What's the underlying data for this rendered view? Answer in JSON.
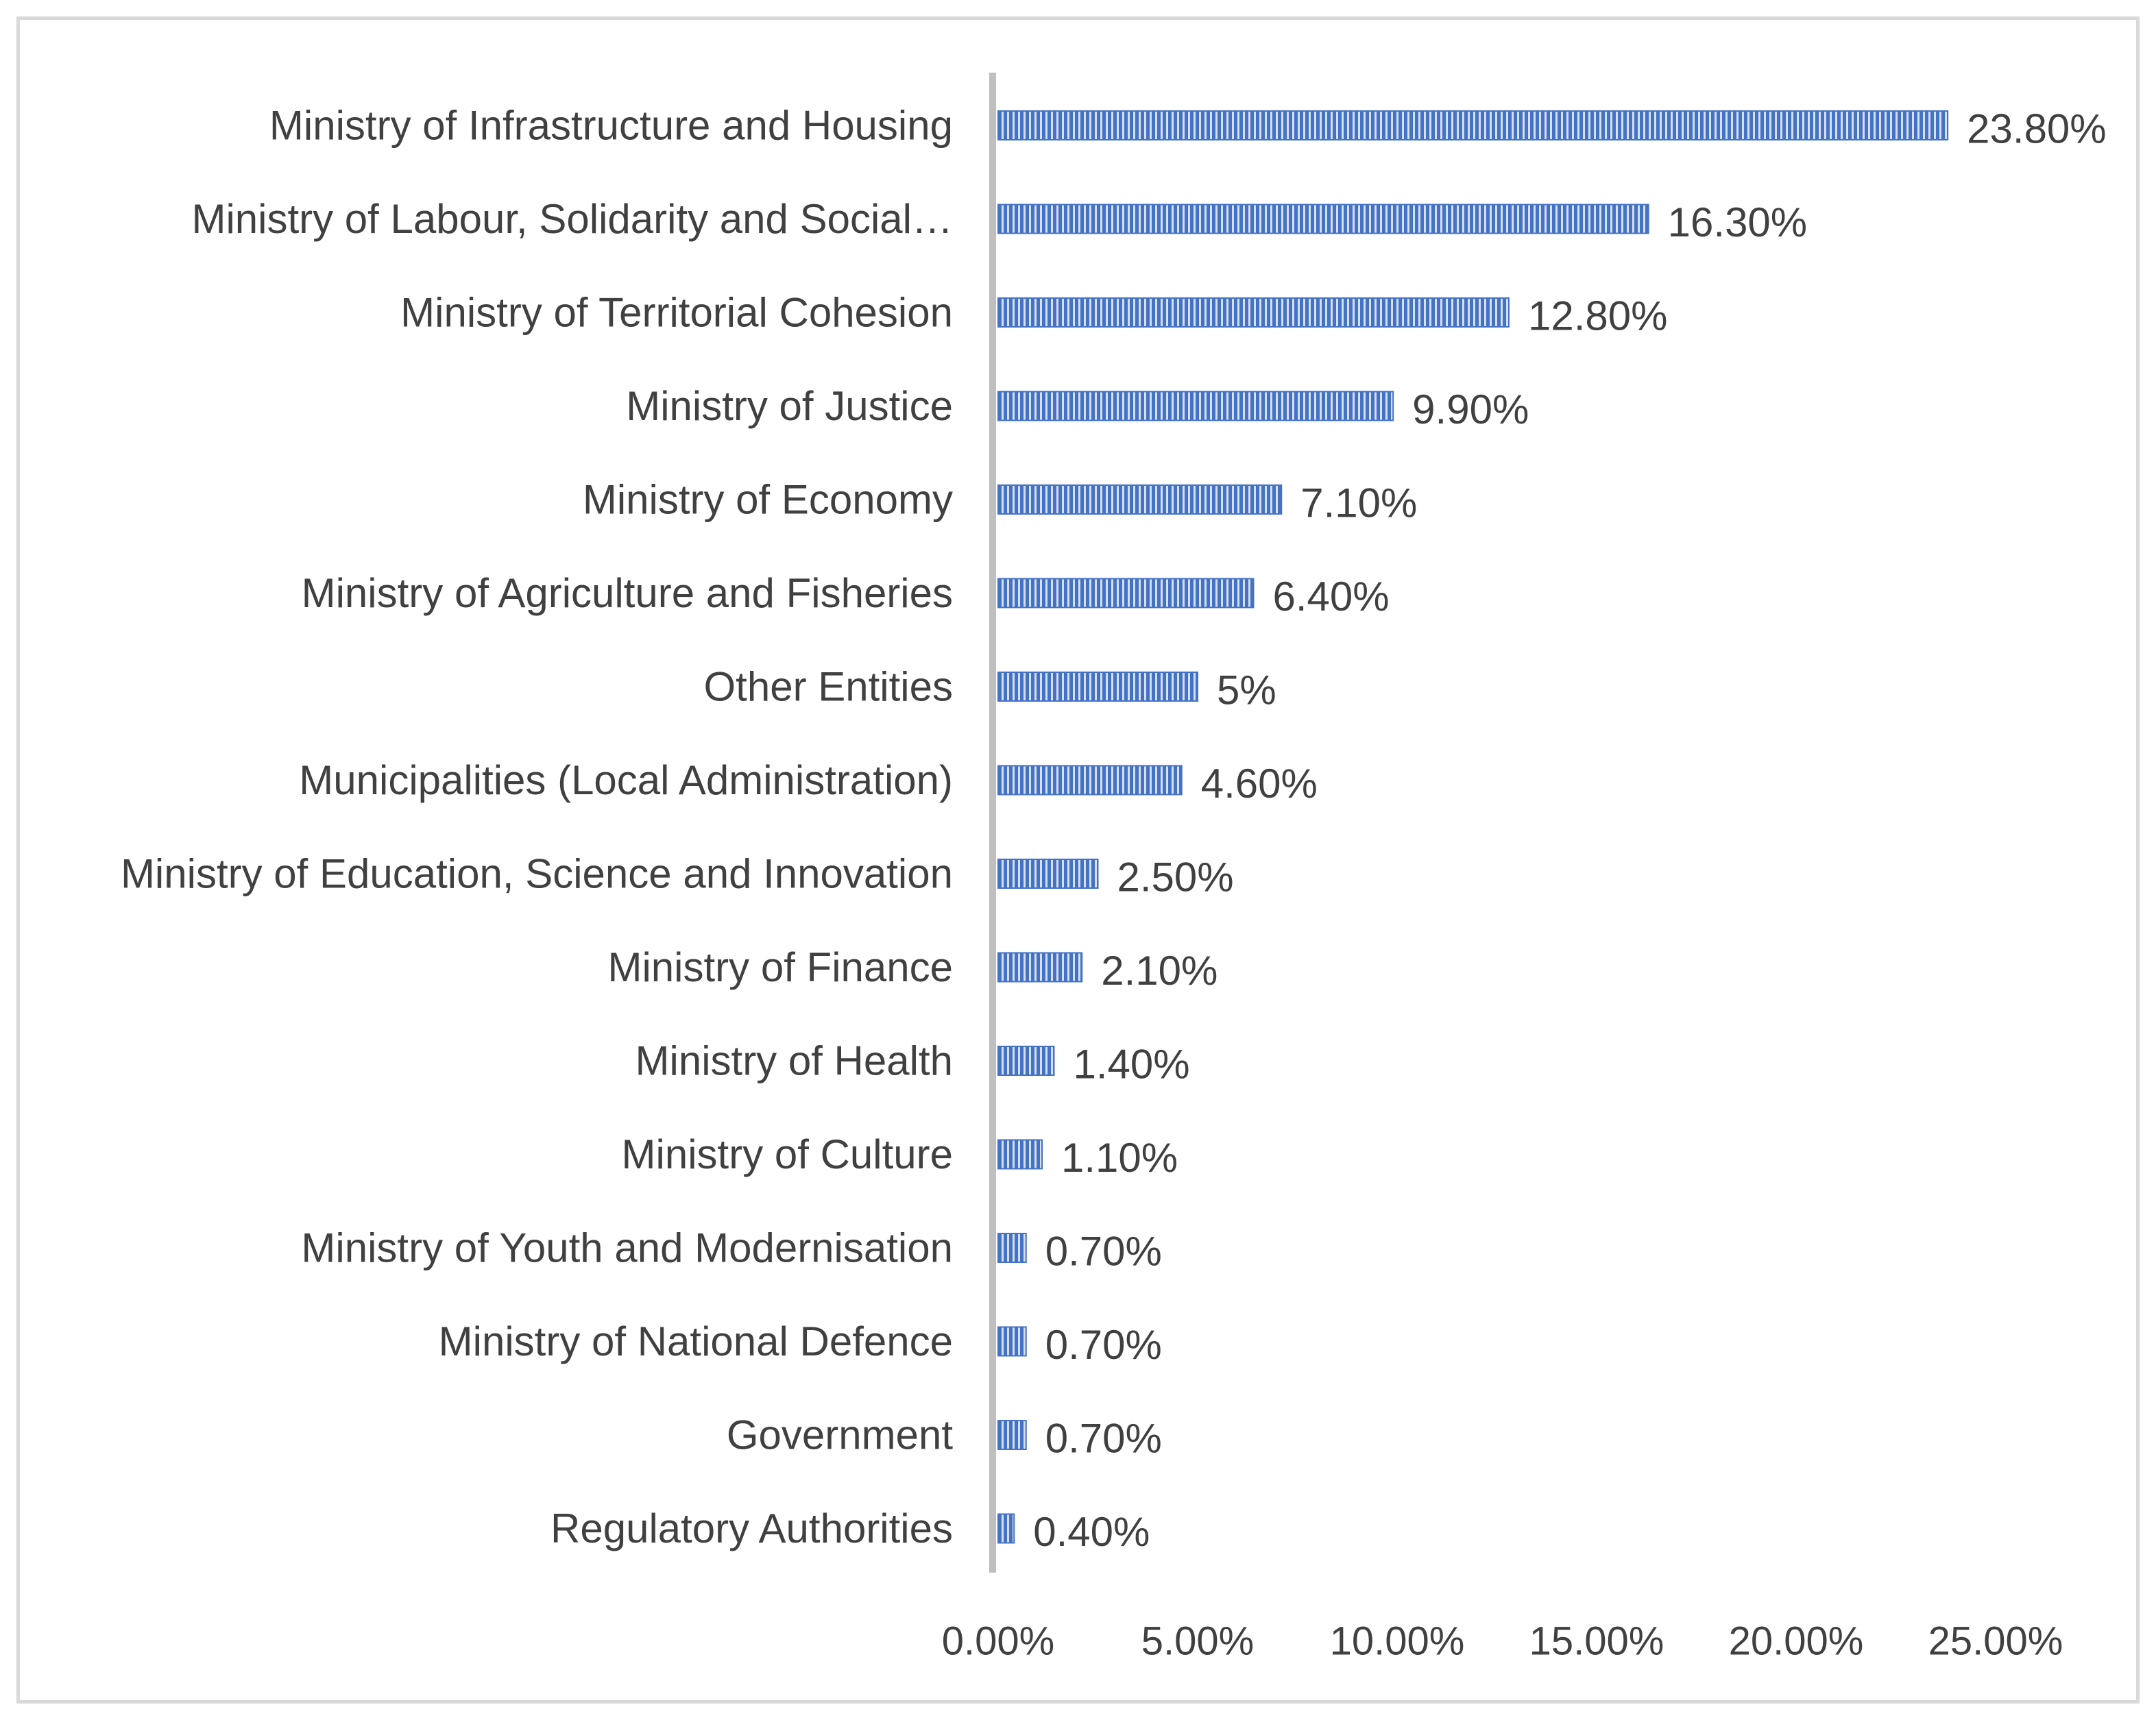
{
  "chart_data": {
    "type": "bar",
    "orientation": "horizontal",
    "title": "",
    "xlabel": "",
    "ylabel": "",
    "xlim": [
      0,
      25
    ],
    "grid": false,
    "legend": "none",
    "categories": [
      "Ministry of Infrastructure and Housing",
      "Ministry of Labour, Solidarity and Social…",
      "Ministry of Territorial Cohesion",
      "Ministry of Justice",
      "Ministry of Economy",
      "Ministry of Agriculture and Fisheries",
      "Other Entities",
      "Municipalities (Local Administration)",
      "Ministry of Education, Science and Innovation",
      "Ministry of Finance",
      "Ministry of Health",
      "Ministry of Culture",
      "Ministry of Youth and Modernisation",
      "Ministry of National Defence",
      "Government",
      "Regulatory Authorities"
    ],
    "values": [
      23.8,
      16.3,
      12.8,
      9.9,
      7.1,
      6.4,
      5,
      4.6,
      2.5,
      2.1,
      1.4,
      1.1,
      0.7,
      0.7,
      0.7,
      0.4
    ],
    "value_labels": [
      "23.80%",
      "16.30%",
      "12.80%",
      "9.90%",
      "7.10%",
      "6.40%",
      "5%",
      "4.60%",
      "2.50%",
      "2.10%",
      "1.40%",
      "1.10%",
      "0.70%",
      "0.70%",
      "0.70%",
      "0.40%"
    ],
    "ticks": [
      0,
      5,
      10,
      15,
      20,
      25
    ],
    "tick_labels": [
      "0.00%",
      "5.00%",
      "10.00%",
      "15.00%",
      "20.00%",
      "25.00%"
    ],
    "colors": {
      "bar_fill": "#4472c4",
      "bar_stripe": "#d6e0f5",
      "axis": "#bfbfbf",
      "text": "#404040",
      "frame": "#d9d9d9"
    }
  }
}
